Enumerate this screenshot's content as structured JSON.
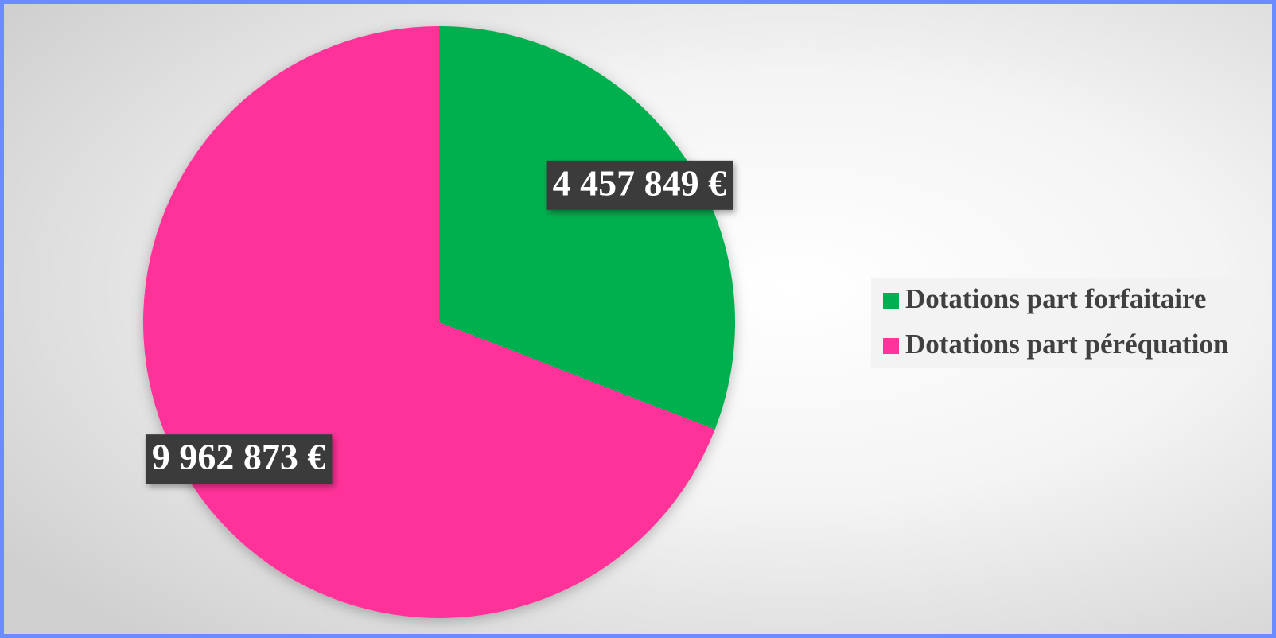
{
  "chart_data": {
    "type": "pie",
    "categories": [
      "Dotations part forfaitaire",
      "Dotations part péréquation"
    ],
    "values": [
      4457849,
      9962873
    ],
    "value_labels": [
      "4 457 849 €",
      "9 962 873 €"
    ],
    "colors": [
      "#00b050",
      "#ff3399"
    ],
    "legend": "right"
  }
}
